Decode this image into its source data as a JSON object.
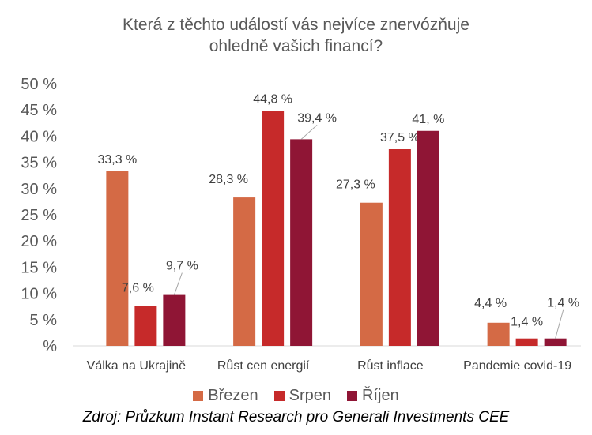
{
  "chart_data": {
    "type": "bar",
    "title": "Která z těchto událostí vás nejvíce znervózňuje\nohledně vašich financí?",
    "categories": [
      "Válka na Ukrajině",
      "Růst cen energií",
      "Růst inflace",
      "Pandemie covid-19"
    ],
    "series": [
      {
        "name": "Březen",
        "color": "#d46a45",
        "values": [
          33.3,
          28.3,
          27.3,
          4.4
        ],
        "labels": [
          "33,3 %",
          "28,3 %",
          "27,3 %",
          "4,4 %"
        ]
      },
      {
        "name": "Srpen",
        "color": "#c62a2a",
        "values": [
          7.6,
          44.8,
          37.5,
          1.4
        ],
        "labels": [
          "7,6 %",
          "44,8 %",
          "37,5 %",
          "1,4 %"
        ]
      },
      {
        "name": "Říjen",
        "color": "#8f1535",
        "values": [
          9.7,
          39.4,
          41.0,
          1.4
        ],
        "labels": [
          "9,7 %",
          "39,4 %",
          "41, %",
          "1,4 %"
        ]
      }
    ],
    "ylim": [
      0,
      50
    ],
    "yticks": [
      "%",
      "5 %",
      "10 %",
      "15 %",
      "20 %",
      "25 %",
      "30 %",
      "35 %",
      "40 %",
      "45 %",
      "50 %"
    ],
    "grid": false,
    "legend": "bottom",
    "source": "Zdroj: Průzkum Instant Research pro Generali Investments CEE"
  }
}
